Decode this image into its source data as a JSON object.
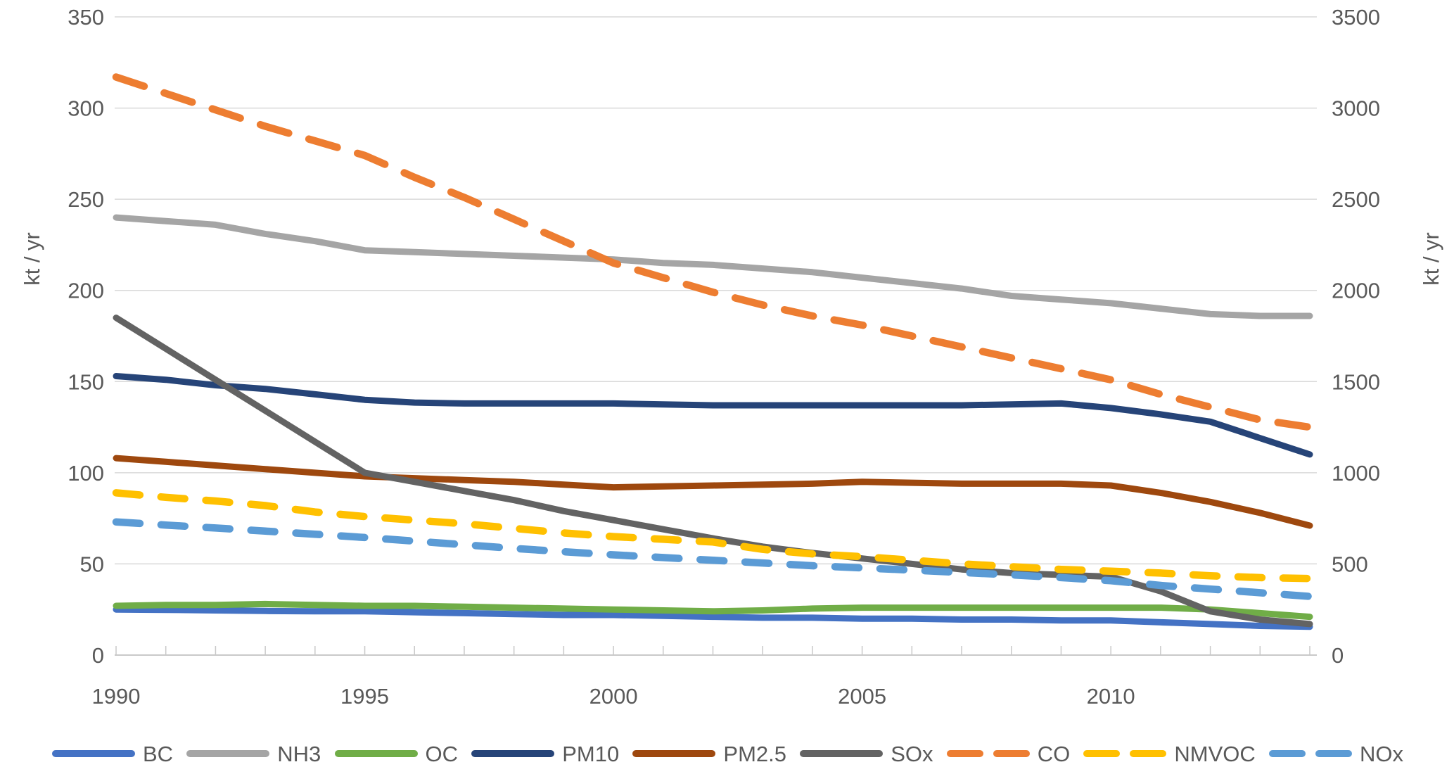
{
  "chart_data": {
    "type": "line",
    "title": "",
    "xlabel": "",
    "ylabel_left": "kt / yr",
    "ylabel_right": "kt / yr",
    "grid": "horizontal",
    "legend_position": "bottom",
    "x": [
      1990,
      1991,
      1992,
      1993,
      1994,
      1995,
      1996,
      1997,
      1998,
      1999,
      2000,
      2001,
      2002,
      2003,
      2004,
      2005,
      2006,
      2007,
      2008,
      2009,
      2010,
      2011,
      2012,
      2013,
      2014
    ],
    "axes": {
      "left": {
        "title": "kt / yr",
        "min": 0,
        "max": 350,
        "ticks": [
          350,
          300,
          250,
          200,
          150,
          100,
          50,
          0
        ]
      },
      "right": {
        "title": "kt / yr",
        "min": 0,
        "max": 3500,
        "ticks": [
          3500,
          3000,
          2500,
          2000,
          1500,
          1000,
          500,
          0
        ]
      },
      "x_tick_labels": [
        1990,
        1995,
        2000,
        2005,
        2010
      ]
    },
    "series": [
      {
        "name": "BC",
        "axis": "left",
        "style": "solid",
        "color": "#4472C4",
        "values": [
          25,
          24.8,
          24.5,
          24.2,
          24,
          24,
          23.5,
          23,
          22.5,
          22,
          22,
          21.5,
          21,
          20.5,
          20.5,
          20,
          20,
          19.5,
          19.5,
          19,
          19,
          18,
          17,
          16,
          15.5
        ]
      },
      {
        "name": "NH3",
        "axis": "left",
        "style": "solid",
        "color": "#A5A5A5",
        "values": [
          240,
          238,
          236,
          231,
          227,
          222,
          221,
          220,
          219,
          218,
          217,
          215,
          214,
          212,
          210,
          207,
          204,
          201,
          197,
          195,
          193,
          190,
          187,
          186,
          186
        ]
      },
      {
        "name": "OC",
        "axis": "left",
        "style": "solid",
        "color": "#70AD47",
        "values": [
          27,
          27.5,
          27.5,
          28,
          27.5,
          27,
          27,
          26.5,
          26,
          25.5,
          25,
          24.5,
          24,
          24.5,
          25.5,
          26,
          26,
          26,
          26,
          26,
          26,
          26,
          25,
          23,
          21
        ]
      },
      {
        "name": "PM10",
        "axis": "left",
        "style": "solid",
        "color": "#264478",
        "values": [
          153,
          151,
          148,
          146,
          143,
          140,
          138.5,
          138,
          138,
          138,
          138,
          137.5,
          137,
          137,
          137,
          137,
          137,
          137,
          137.5,
          138,
          135.5,
          132,
          128,
          119,
          110
        ]
      },
      {
        "name": "PM2.5",
        "axis": "left",
        "style": "solid",
        "color": "#9E480E",
        "values": [
          108,
          106,
          104,
          102,
          100,
          98,
          97,
          96,
          95,
          93.5,
          92,
          92.5,
          93,
          93.5,
          94,
          95,
          94.5,
          94,
          94,
          94,
          93,
          89,
          84,
          78,
          71
        ]
      },
      {
        "name": "SOx",
        "axis": "left",
        "style": "solid",
        "color": "#636363",
        "values": [
          185,
          168,
          151,
          134,
          117,
          100,
          95,
          90,
          85,
          79,
          74,
          69,
          64,
          59.5,
          56,
          53,
          50,
          47,
          45,
          44,
          43,
          35,
          24,
          19.5,
          17
        ]
      },
      {
        "name": "CO",
        "axis": "right",
        "style": "dashed",
        "color": "#ED7D31",
        "values": [
          3170,
          3080,
          2990,
          2900,
          2820,
          2740,
          2620,
          2510,
          2390,
          2270,
          2150,
          2070,
          1990,
          1920,
          1860,
          1810,
          1750,
          1690,
          1630,
          1570,
          1510,
          1430,
          1360,
          1290,
          1250
        ]
      },
      {
        "name": "NMVOC",
        "axis": "right",
        "style": "dashed",
        "color": "#FFC000",
        "values": [
          890,
          865,
          845,
          820,
          785,
          760,
          740,
          720,
          695,
          670,
          650,
          635,
          620,
          580,
          555,
          540,
          520,
          500,
          485,
          470,
          460,
          450,
          435,
          425,
          420
        ]
      },
      {
        "name": "NOx",
        "axis": "right",
        "style": "dashed",
        "color": "#5B9BD5",
        "values": [
          730,
          713,
          697,
          680,
          663,
          645,
          625,
          605,
          585,
          567,
          550,
          535,
          520,
          505,
          490,
          478,
          466,
          453,
          440,
          425,
          408,
          382,
          362,
          342,
          322
        ]
      }
    ]
  },
  "style_tokens": {
    "gridline_color": "#D9D9D9",
    "axis_line_color": "#C9C9C9",
    "tick_label_color": "#595959",
    "background": "#FFFFFF"
  }
}
